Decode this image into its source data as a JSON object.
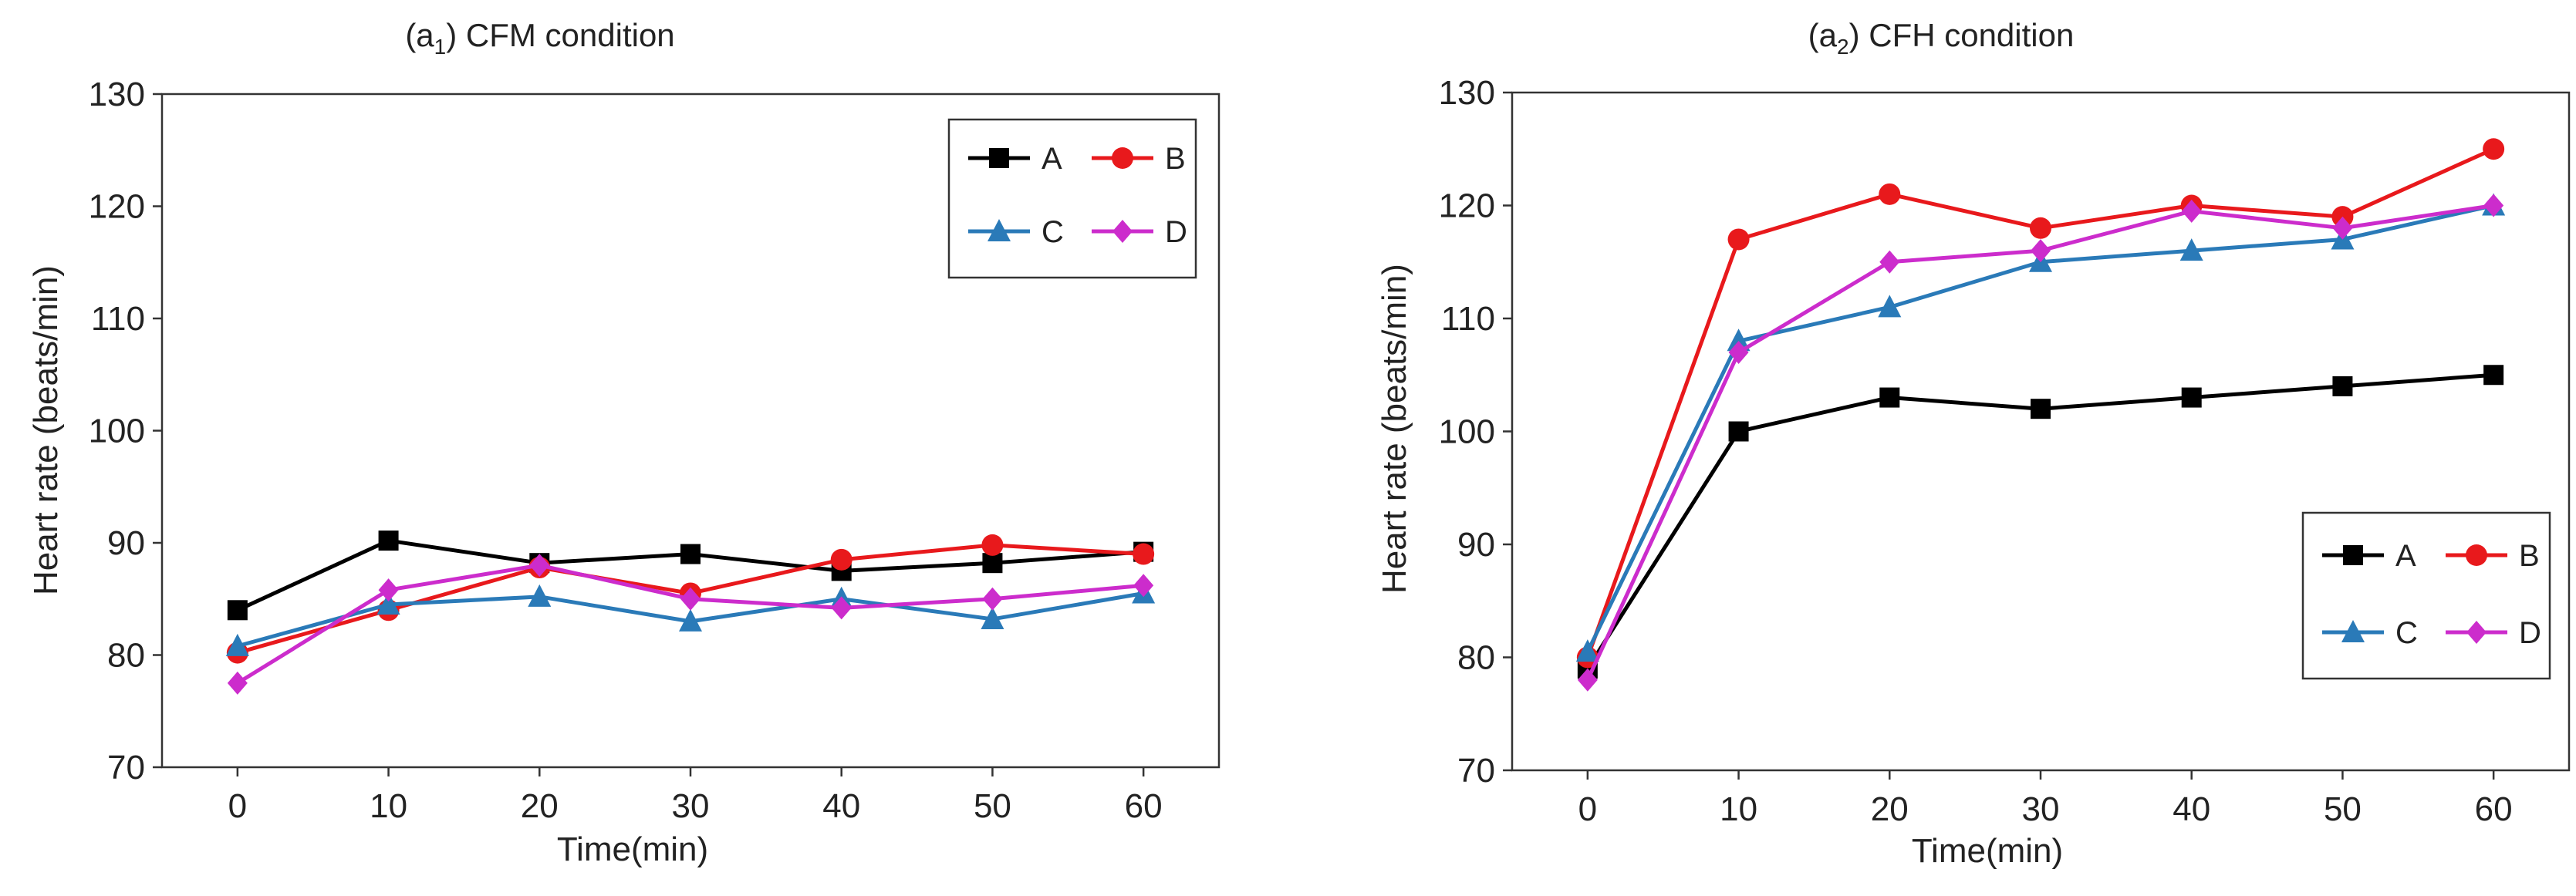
{
  "figure": {
    "panels": [
      {
        "id": "a1",
        "title_prefix": "(a",
        "title_sub": "1",
        "title_suffix": ") CFM condition"
      },
      {
        "id": "a2",
        "title_prefix": "(a",
        "title_sub": "2",
        "title_suffix": ") CFH condition"
      }
    ]
  },
  "chart_data": [
    {
      "type": "line",
      "title": "(a1) CFM condition",
      "xlabel": "Time(min)",
      "ylabel": "Heart rate (beats/min)",
      "x": [
        0,
        10,
        20,
        30,
        40,
        50,
        60
      ],
      "xlim": [
        -5,
        65
      ],
      "ylim": [
        70,
        130
      ],
      "yticks": [
        70,
        80,
        90,
        100,
        110,
        120,
        130
      ],
      "legend_position": "top-right",
      "series": [
        {
          "name": "A",
          "color": "#000000",
          "marker": "square",
          "values": [
            84,
            90.2,
            88.2,
            89,
            87.5,
            88.2,
            89.2
          ]
        },
        {
          "name": "B",
          "color": "#e8191c",
          "marker": "circle",
          "values": [
            80.2,
            84,
            87.8,
            85.5,
            88.5,
            89.8,
            89
          ]
        },
        {
          "name": "C",
          "color": "#2a7ab8",
          "marker": "triangle",
          "values": [
            80.8,
            84.5,
            85.2,
            83,
            85,
            83.2,
            85.5
          ]
        },
        {
          "name": "D",
          "color": "#cc2ccc",
          "marker": "diamond",
          "values": [
            77.5,
            85.8,
            88,
            85,
            84.2,
            85,
            86.2
          ]
        }
      ]
    },
    {
      "type": "line",
      "title": "(a2) CFH condition",
      "xlabel": "Time(min)",
      "ylabel": "Heart rate (beats/min)",
      "x": [
        0,
        10,
        20,
        30,
        40,
        50,
        60
      ],
      "xlim": [
        -5,
        65
      ],
      "ylim": [
        70,
        130
      ],
      "yticks": [
        70,
        80,
        90,
        100,
        110,
        120,
        130
      ],
      "legend_position": "bottom-right",
      "series": [
        {
          "name": "A",
          "color": "#000000",
          "marker": "square",
          "values": [
            79,
            100,
            103,
            102,
            103,
            104,
            105
          ]
        },
        {
          "name": "B",
          "color": "#e8191c",
          "marker": "circle",
          "values": [
            80,
            117,
            121,
            118,
            120,
            119,
            125
          ]
        },
        {
          "name": "C",
          "color": "#2a7ab8",
          "marker": "triangle",
          "values": [
            80.5,
            108,
            111,
            115,
            116,
            117,
            120
          ]
        },
        {
          "name": "D",
          "color": "#cc2ccc",
          "marker": "diamond",
          "values": [
            78,
            107,
            115,
            116,
            119.5,
            118,
            120
          ]
        }
      ]
    }
  ]
}
